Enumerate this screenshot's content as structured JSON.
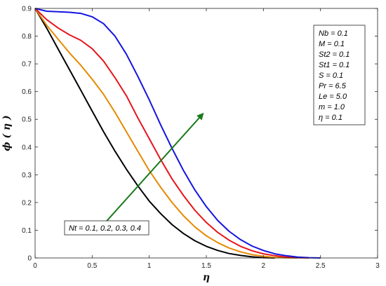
{
  "chart_data": {
    "type": "line",
    "xlabel": "η",
    "ylabel": "ϕ ( η )",
    "xlim": [
      0,
      3
    ],
    "ylim": [
      0,
      0.9
    ],
    "xticks": [
      "0",
      "0.5",
      "1",
      "1.5",
      "2",
      "2.5",
      "3"
    ],
    "yticks": [
      "0",
      "0.1",
      "0.2",
      "0.3",
      "0.4",
      "0.5",
      "0.6",
      "0.7",
      "0.8",
      "0.9"
    ],
    "grid": false,
    "series": [
      {
        "color": "#000000",
        "x": [
          0,
          0.1,
          0.2,
          0.3,
          0.4,
          0.5,
          0.6,
          0.7,
          0.8,
          0.9,
          1.0,
          1.1,
          1.2,
          1.3,
          1.4,
          1.5,
          1.6,
          1.7,
          1.8,
          1.9,
          2.0,
          2.1
        ],
        "y": [
          0.9,
          0.83,
          0.755,
          0.68,
          0.605,
          0.53,
          0.455,
          0.385,
          0.32,
          0.26,
          0.205,
          0.16,
          0.12,
          0.088,
          0.062,
          0.042,
          0.027,
          0.016,
          0.009,
          0.004,
          0.001,
          0.0
        ]
      },
      {
        "color": "#E58A00",
        "x": [
          0,
          0.1,
          0.2,
          0.3,
          0.4,
          0.5,
          0.6,
          0.7,
          0.8,
          0.9,
          1.0,
          1.1,
          1.2,
          1.3,
          1.4,
          1.5,
          1.6,
          1.7,
          1.8,
          1.9,
          2.0,
          2.1,
          2.2,
          2.3
        ],
        "y": [
          0.9,
          0.84,
          0.79,
          0.74,
          0.695,
          0.645,
          0.59,
          0.525,
          0.455,
          0.385,
          0.315,
          0.255,
          0.2,
          0.152,
          0.112,
          0.08,
          0.055,
          0.036,
          0.022,
          0.012,
          0.006,
          0.002,
          0.0005,
          0.0
        ]
      },
      {
        "color": "#E8141B",
        "x": [
          0,
          0.1,
          0.2,
          0.3,
          0.4,
          0.5,
          0.6,
          0.7,
          0.8,
          0.9,
          1.0,
          1.1,
          1.2,
          1.3,
          1.4,
          1.5,
          1.6,
          1.7,
          1.8,
          1.9,
          2.0,
          2.1,
          2.2,
          2.3,
          2.4
        ],
        "y": [
          0.9,
          0.86,
          0.83,
          0.805,
          0.785,
          0.755,
          0.71,
          0.65,
          0.585,
          0.505,
          0.43,
          0.355,
          0.285,
          0.225,
          0.172,
          0.128,
          0.092,
          0.064,
          0.042,
          0.026,
          0.015,
          0.008,
          0.003,
          0.001,
          0.0
        ]
      },
      {
        "color": "#1414E0",
        "x": [
          0,
          0.1,
          0.2,
          0.3,
          0.4,
          0.5,
          0.6,
          0.7,
          0.8,
          0.9,
          1.0,
          1.1,
          1.2,
          1.3,
          1.4,
          1.5,
          1.6,
          1.7,
          1.8,
          1.9,
          2.0,
          2.1,
          2.2,
          2.3,
          2.4,
          2.5
        ],
        "y": [
          0.9,
          0.89,
          0.888,
          0.886,
          0.882,
          0.87,
          0.845,
          0.8,
          0.735,
          0.655,
          0.57,
          0.48,
          0.395,
          0.315,
          0.245,
          0.185,
          0.135,
          0.096,
          0.066,
          0.043,
          0.027,
          0.015,
          0.008,
          0.003,
          0.001,
          0.0
        ]
      }
    ],
    "legend_box": {
      "position": "top-right",
      "lines": [
        "Nb = 0.1",
        "M = 0.1",
        "St2 = 0.1",
        "St1 = 0.1",
        "S = 0.1",
        "Pr = 6.5",
        "Le = 5.0",
        "m = 1.0",
        "η = 0.1"
      ]
    },
    "annotation": {
      "text": "Nt = 0.1, 0.2, 0.3, 0.4",
      "arrow_color": "#1A7A1A",
      "arrow_from": [
        0.62,
        0.13
      ],
      "arrow_to": [
        1.47,
        0.52
      ]
    }
  }
}
